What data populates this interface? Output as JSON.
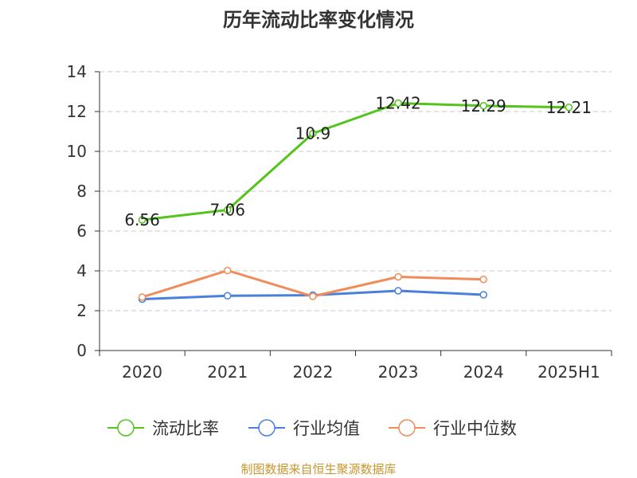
{
  "chart_data": {
    "type": "line",
    "title": "历年流动比率变化情况",
    "categories": [
      "2020",
      "2021",
      "2022",
      "2023",
      "2024",
      "2025H1"
    ],
    "ylim": [
      0,
      14
    ],
    "yticks": [
      0,
      2,
      4,
      6,
      8,
      10,
      12,
      14
    ],
    "ytick_labels": [
      "0",
      "2",
      "4",
      "6",
      "8",
      "10",
      "12",
      "14"
    ],
    "grid": true,
    "legend_position": "bottom",
    "series": [
      {
        "name": "流动比率",
        "color": "#52c41a",
        "values": [
          6.56,
          7.06,
          10.9,
          12.42,
          12.29,
          12.21
        ],
        "labels": [
          "6.56",
          "7.06",
          "10.9",
          "12.42",
          "12.29",
          "12.21"
        ]
      },
      {
        "name": "行业均值",
        "color": "#4a7fdc",
        "values": [
          2.58,
          2.75,
          2.78,
          3.0,
          2.8,
          null
        ]
      },
      {
        "name": "行业中位数",
        "color": "#f08c5a",
        "values": [
          2.68,
          4.02,
          2.72,
          3.7,
          3.57,
          null
        ]
      }
    ]
  },
  "source_note": "制图数据来自恒生聚源数据库"
}
